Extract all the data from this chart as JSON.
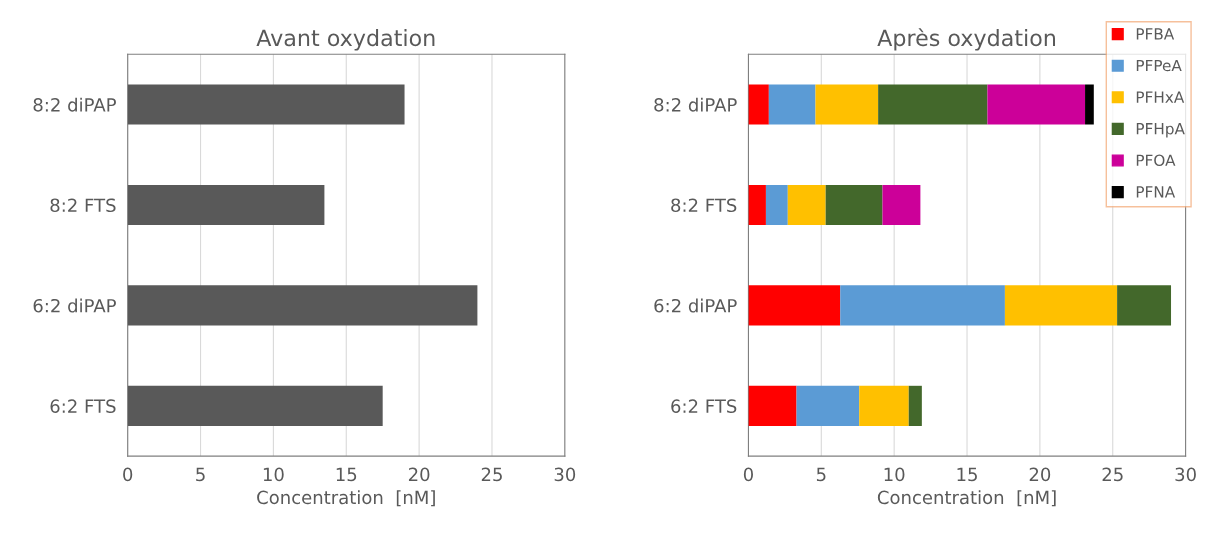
{
  "chart_data": [
    {
      "type": "bar",
      "orientation": "horizontal",
      "title": "Avant oxydation",
      "xlabel": "Concentration  [nM]",
      "categories": [
        "8:2 diPAP",
        "8:2 FTS",
        "6:2 diPAP",
        "6:2 FTS"
      ],
      "values": [
        19.0,
        13.5,
        24.0,
        17.5
      ],
      "color": "#595959",
      "xlim": [
        0,
        30
      ],
      "xticks": [
        0,
        5,
        10,
        15,
        20,
        25,
        30
      ],
      "grid": "x"
    },
    {
      "type": "bar",
      "orientation": "horizontal",
      "stacked": true,
      "title": "Après oxydation",
      "xlabel": "Concentration  [nM]",
      "categories": [
        "8:2 diPAP",
        "8:2 FTS",
        "6:2 diPAP",
        "6:2 FTS"
      ],
      "xlim": [
        0,
        30
      ],
      "xticks": [
        0,
        5,
        10,
        15,
        20,
        25,
        30
      ],
      "grid": "x",
      "legend": "top right",
      "series": [
        {
          "name": "PFBA",
          "color": "#ff0000",
          "values": [
            1.4,
            1.2,
            6.3,
            3.3
          ]
        },
        {
          "name": "PFPeA",
          "color": "#5b9bd5",
          "values": [
            3.2,
            1.5,
            11.3,
            4.3
          ]
        },
        {
          "name": "PFHxA",
          "color": "#ffc000",
          "values": [
            4.3,
            2.6,
            7.7,
            3.4
          ]
        },
        {
          "name": "PFHpA",
          "color": "#43682b",
          "values": [
            7.5,
            3.9,
            3.7,
            0.9
          ]
        },
        {
          "name": "PFOA",
          "color": "#cc0099",
          "values": [
            6.7,
            2.6,
            null,
            null
          ]
        },
        {
          "name": "PFNA",
          "color": "#000000",
          "values": [
            0.6,
            null,
            null,
            null
          ]
        }
      ]
    }
  ]
}
